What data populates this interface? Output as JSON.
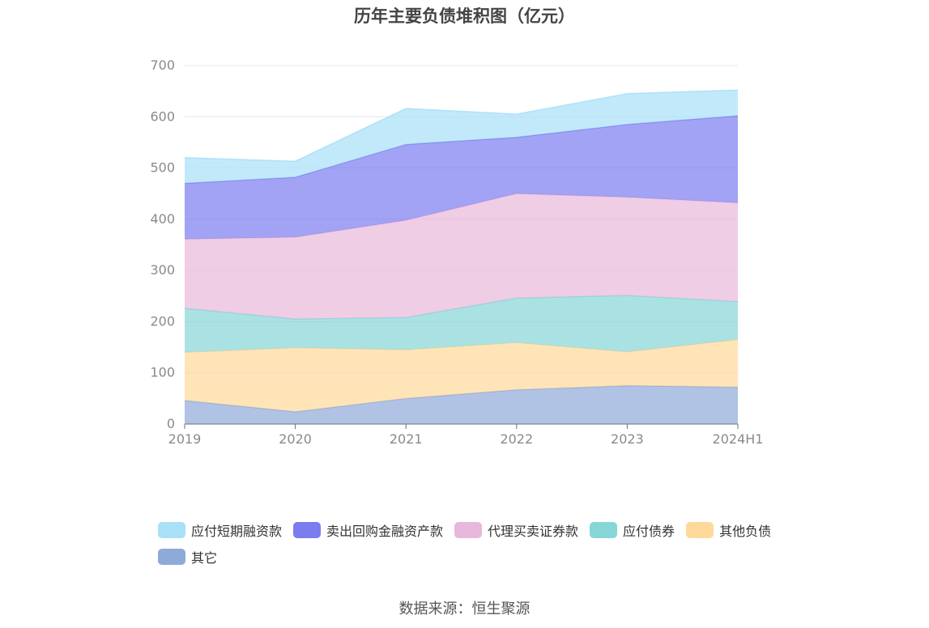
{
  "chart_data": {
    "type": "area",
    "title": "历年主要负债堆积图（亿元）",
    "x": [
      "2019",
      "2020",
      "2021",
      "2022",
      "2023",
      "2024H1"
    ],
    "ylim": [
      0,
      700
    ],
    "yticks": [
      0,
      100,
      200,
      300,
      400,
      500,
      600,
      700
    ],
    "stacked": true,
    "grid": true,
    "legend_position": "bottom",
    "series": [
      {
        "name": "其它",
        "color": "#8eaad9",
        "values": [
          46,
          24,
          50,
          67,
          75,
          72
        ]
      },
      {
        "name": "其他负债",
        "color": "#ffd99a",
        "values": [
          94,
          125,
          95,
          92,
          66,
          93
        ]
      },
      {
        "name": "应付债券",
        "color": "#86d6d8",
        "values": [
          86,
          56,
          63,
          87,
          110,
          74
        ]
      },
      {
        "name": "代理买卖证券款",
        "color": "#e8b8da",
        "values": [
          135,
          160,
          190,
          204,
          192,
          193
        ]
      },
      {
        "name": "卖出回购金融资产款",
        "color": "#7b7cf0",
        "values": [
          109,
          117,
          148,
          110,
          142,
          170
        ]
      },
      {
        "name": "应付短期融资款",
        "color": "#a8e0f8",
        "values": [
          50,
          31,
          70,
          45,
          60,
          50
        ]
      }
    ]
  },
  "legend_order": [
    "应付短期融资款",
    "卖出回购金融资产款",
    "代理买卖证券款",
    "应付债券",
    "其他负债",
    "其它"
  ],
  "source": "数据来源：恒生聚源"
}
